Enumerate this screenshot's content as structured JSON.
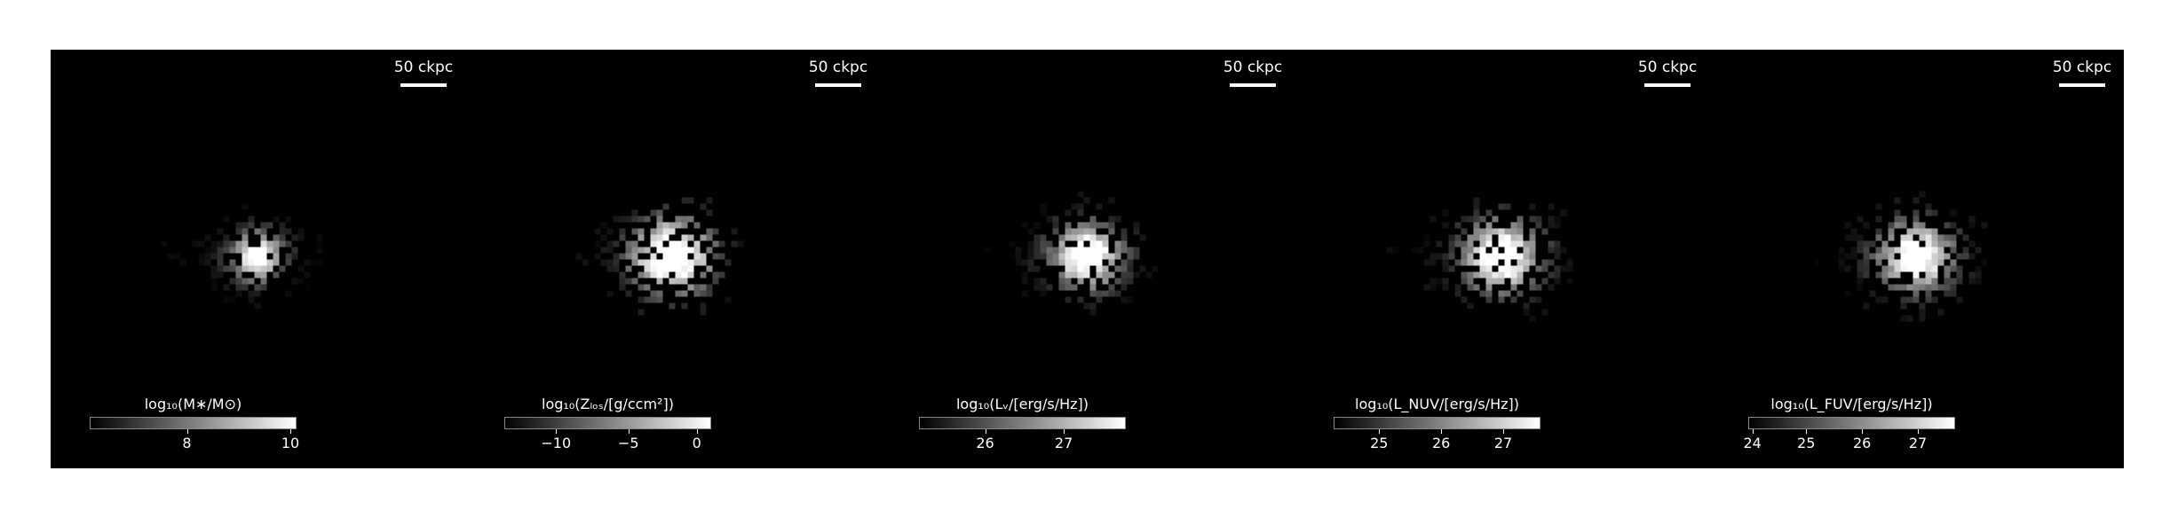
{
  "figure": {
    "scale_label": "50 ckpc",
    "panels": [
      {
        "id": "stellar-mass",
        "cbar_title": "log₁₀(M∗/M⊙)",
        "ticks": [
          {
            "label": "8",
            "frac": 0.47
          },
          {
            "label": "10",
            "frac": 0.97
          }
        ],
        "halo_intensity": 0.35,
        "core_intensity": 1.0,
        "spread": 1.0,
        "extent": 1.0
      },
      {
        "id": "metallicity-column",
        "cbar_title": "log₁₀(Zₗₒₛ/[g/ccm²])",
        "ticks": [
          {
            "label": "−10",
            "frac": 0.25
          },
          {
            "label": "−5",
            "frac": 0.6
          },
          {
            "label": "0",
            "frac": 0.93
          }
        ],
        "halo_intensity": 0.6,
        "core_intensity": 1.0,
        "spread": 1.6,
        "extent": 1.2
      },
      {
        "id": "v-band-luminosity",
        "cbar_title": "log₁₀(Lᵥ/[erg/s/Hz])",
        "ticks": [
          {
            "label": "26",
            "frac": 0.32
          },
          {
            "label": "27",
            "frac": 0.7
          }
        ],
        "halo_intensity": 0.5,
        "core_intensity": 1.0,
        "spread": 1.3,
        "extent": 1.2
      },
      {
        "id": "nuv-luminosity",
        "cbar_title": "log₁₀(L_NUV/[erg/s/Hz])",
        "ticks": [
          {
            "label": "25",
            "frac": 0.22
          },
          {
            "label": "26",
            "frac": 0.52
          },
          {
            "label": "27",
            "frac": 0.82
          }
        ],
        "halo_intensity": 0.5,
        "core_intensity": 0.95,
        "spread": 1.5,
        "extent": 1.25
      },
      {
        "id": "fuv-luminosity",
        "cbar_title": "log₁₀(L_FUV/[erg/s/Hz])",
        "ticks": [
          {
            "label": "24",
            "frac": 0.02
          },
          {
            "label": "25",
            "frac": 0.28
          },
          {
            "label": "26",
            "frac": 0.55
          },
          {
            "label": "27",
            "frac": 0.82
          }
        ],
        "halo_intensity": 0.5,
        "core_intensity": 0.95,
        "spread": 1.45,
        "extent": 1.25
      }
    ]
  }
}
